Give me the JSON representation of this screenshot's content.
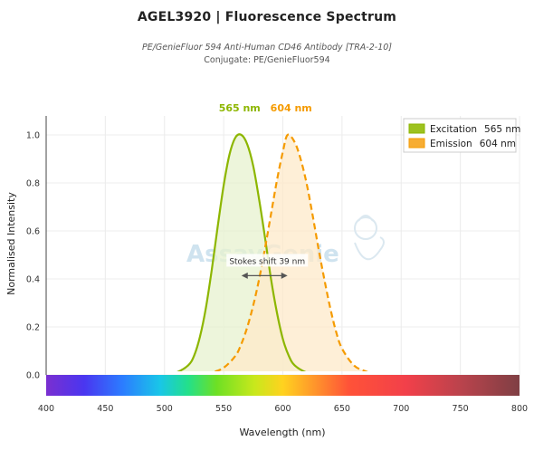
{
  "header": {
    "title": "AGEL3920  |  Fluorescence Spectrum",
    "subtitle": "PE/GenieFluor 594 Anti-Human CD46 Antibody [TRA-2-10]",
    "conjugate": "Conjugate: PE/GenieFluor594"
  },
  "watermark": "AssayGenie",
  "chart_data": {
    "type": "area",
    "xlabel": "Wavelength (nm)",
    "ylabel": "Normalised Intensity",
    "xlim": [
      400,
      800
    ],
    "ylim": [
      0,
      1.05
    ],
    "x_ticks": [
      "400",
      "450",
      "500",
      "550",
      "600",
      "650",
      "700",
      "750",
      "800"
    ],
    "y_ticks": [
      "0.0",
      "0.2",
      "0.4",
      "0.6",
      "0.8",
      "1.0"
    ],
    "grid": true,
    "legend_position": "top-right",
    "series": [
      {
        "name": "Excitation",
        "peak_label": "565 nm",
        "color": "#8db600",
        "style": "solid",
        "x": [
          400,
          450,
          500,
          510,
          520,
          525,
          530,
          535,
          540,
          545,
          550,
          555,
          560,
          565,
          570,
          575,
          580,
          585,
          590,
          595,
          600,
          605,
          610,
          620,
          630,
          650,
          700,
          800
        ],
        "values": [
          0,
          0,
          0,
          0.01,
          0.04,
          0.08,
          0.16,
          0.28,
          0.44,
          0.62,
          0.79,
          0.92,
          0.99,
          1.0,
          0.96,
          0.87,
          0.73,
          0.57,
          0.4,
          0.26,
          0.15,
          0.08,
          0.04,
          0.01,
          0,
          0,
          0,
          0
        ]
      },
      {
        "name": "Emission",
        "peak_label": "604 nm",
        "color": "#f59b00",
        "style": "dashed",
        "x": [
          400,
          500,
          530,
          540,
          550,
          560,
          565,
          570,
          575,
          580,
          585,
          590,
          595,
          600,
          604,
          610,
          615,
          620,
          625,
          630,
          635,
          640,
          645,
          650,
          660,
          670,
          680,
          700,
          800
        ],
        "values": [
          0,
          0,
          0,
          0.01,
          0.03,
          0.08,
          0.13,
          0.2,
          0.29,
          0.4,
          0.53,
          0.67,
          0.81,
          0.93,
          1.0,
          0.97,
          0.9,
          0.8,
          0.67,
          0.53,
          0.4,
          0.28,
          0.18,
          0.11,
          0.04,
          0.015,
          0,
          0,
          0
        ]
      }
    ],
    "annotation": {
      "text": "Stokes shift  39 nm",
      "from": 565,
      "to": 604,
      "y": 0.44
    }
  }
}
